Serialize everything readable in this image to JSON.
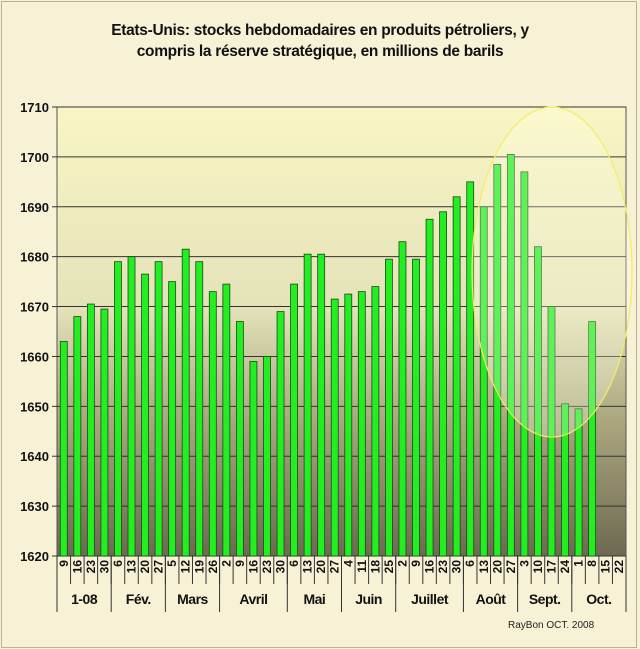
{
  "chart_data": {
    "type": "bar",
    "title_line1": "Etats-Unis: stocks hebdomadaires en produits pétroliers, y",
    "title_line2": "compris la réserve stratégique, en millions de barils",
    "xlabel": "",
    "ylabel": "",
    "ylim": [
      1620,
      1710
    ],
    "yticks": [
      1620,
      1630,
      1640,
      1650,
      1660,
      1670,
      1680,
      1690,
      1700,
      1710
    ],
    "grid": true,
    "groups": [
      {
        "label": "1-08",
        "days": [
          "9",
          "16",
          "23",
          "30"
        ]
      },
      {
        "label": "Fév.",
        "days": [
          "6",
          "13",
          "20",
          "27"
        ]
      },
      {
        "label": "Mars",
        "days": [
          "5",
          "12",
          "19",
          "26"
        ]
      },
      {
        "label": "Avril",
        "days": [
          "2",
          "9",
          "16",
          "23",
          "30"
        ]
      },
      {
        "label": "Mai",
        "days": [
          "6",
          "13",
          "20",
          "27"
        ]
      },
      {
        "label": "Juin",
        "days": [
          "4",
          "11",
          "18",
          "25"
        ]
      },
      {
        "label": "Juillet",
        "days": [
          "2",
          "9",
          "16",
          "23",
          "30"
        ]
      },
      {
        "label": "Août",
        "days": [
          "6",
          "13",
          "20",
          "27"
        ]
      },
      {
        "label": "Sept.",
        "days": [
          "3",
          "10",
          "17",
          "24"
        ]
      },
      {
        "label": "Oct.",
        "days": [
          "1",
          "8",
          "15",
          "22"
        ]
      }
    ],
    "values": [
      1663,
      1668,
      1670.5,
      1669.5,
      1679,
      1680,
      1676.5,
      1679,
      1675,
      1681.5,
      1679,
      1673,
      1674.5,
      1667,
      1659,
      1660,
      1669,
      1674.5,
      1680.5,
      1680.5,
      1671.5,
      1672.5,
      1673,
      1674,
      1679.5,
      1683,
      1679.5,
      1687.5,
      1689,
      1692,
      1695,
      1690,
      1698.5,
      1700.5,
      1697,
      1682,
      1670,
      1650.5,
      1649.5,
      1667,
      null,
      null
    ],
    "bar_color": "#22ee22",
    "annotation": "highlight ellipse over Août–Oct."
  },
  "credit": "RayBon OCT. 2008"
}
